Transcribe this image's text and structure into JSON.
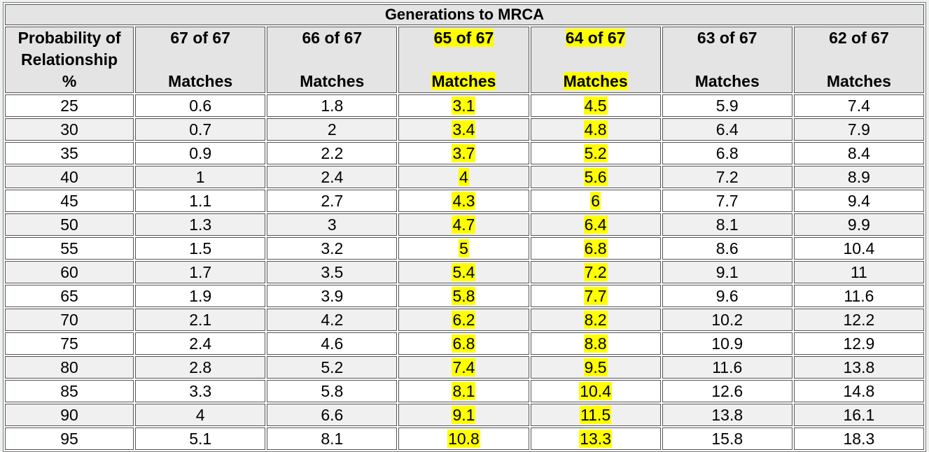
{
  "table": {
    "title": "Generations to MRCA",
    "header": {
      "first": [
        "Probability of",
        "Relationship",
        "%"
      ],
      "columns": [
        {
          "top": "67 of 67",
          "bottom": "Matches",
          "highlight": false
        },
        {
          "top": "66 of 67",
          "bottom": "Matches",
          "highlight": false
        },
        {
          "top": "65 of 67",
          "bottom": "Matches",
          "highlight": true
        },
        {
          "top": "64 of 67",
          "bottom": "Matches",
          "highlight": true
        },
        {
          "top": "63 of 67",
          "bottom": "Matches",
          "highlight": false
        },
        {
          "top": "62 of 67",
          "bottom": "Matches",
          "highlight": false
        }
      ]
    },
    "rows": [
      [
        "25",
        "0.6",
        "1.8",
        "3.1",
        "4.5",
        "5.9",
        "7.4"
      ],
      [
        "30",
        "0.7",
        "2",
        "3.4",
        "4.8",
        "6.4",
        "7.9"
      ],
      [
        "35",
        "0.9",
        "2.2",
        "3.7",
        "5.2",
        "6.8",
        "8.4"
      ],
      [
        "40",
        "1",
        "2.4",
        "4",
        "5.6",
        "7.2",
        "8.9"
      ],
      [
        "45",
        "1.1",
        "2.7",
        "4.3",
        "6",
        "7.7",
        "9.4"
      ],
      [
        "50",
        "1.3",
        "3",
        "4.7",
        "6.4",
        "8.1",
        "9.9"
      ],
      [
        "55",
        "1.5",
        "3.2",
        "5",
        "6.8",
        "8.6",
        "10.4"
      ],
      [
        "60",
        "1.7",
        "3.5",
        "5.4",
        "7.2",
        "9.1",
        "11"
      ],
      [
        "65",
        "1.9",
        "3.9",
        "5.8",
        "7.7",
        "9.6",
        "11.6"
      ],
      [
        "70",
        "2.1",
        "4.2",
        "6.2",
        "8.2",
        "10.2",
        "12.2"
      ],
      [
        "75",
        "2.4",
        "4.6",
        "6.8",
        "8.8",
        "10.9",
        "12.9"
      ],
      [
        "80",
        "2.8",
        "5.2",
        "7.4",
        "9.5",
        "11.6",
        "13.8"
      ],
      [
        "85",
        "3.3",
        "5.8",
        "8.1",
        "10.4",
        "12.6",
        "14.8"
      ],
      [
        "90",
        "4",
        "6.6",
        "9.1",
        "11.5",
        "13.8",
        "16.1"
      ],
      [
        "95",
        "5.1",
        "8.1",
        "10.8",
        "13.3",
        "15.8",
        "18.3"
      ]
    ],
    "colors": {
      "highlight": "#ffff00",
      "header_bg": "#e4e4e4",
      "alt_row_bg": "#f0f0f0",
      "border": "#555555"
    }
  }
}
